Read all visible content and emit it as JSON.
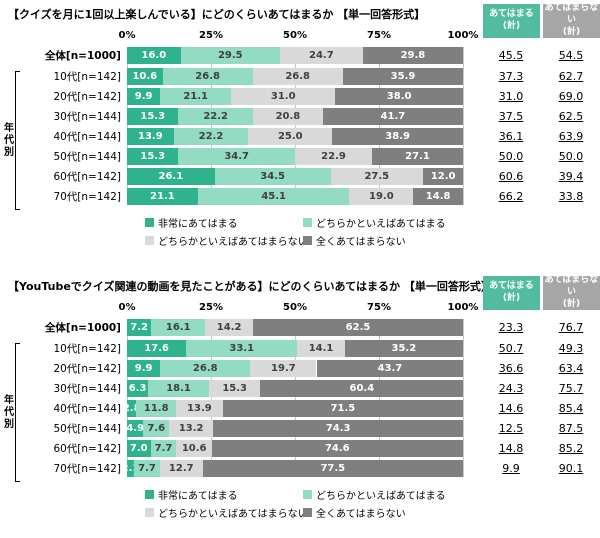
{
  "chart_data": [
    {
      "type": "bar",
      "stacked": true,
      "orientation": "horizontal",
      "title": "【クイズを月に1回以上楽しんでいる】にどのくらいあてはまるか 【単一回答形式】",
      "categories": [
        "全体[n=1000]",
        "10代[n=142]",
        "20代[n=142]",
        "30代[n=144]",
        "40代[n=144]",
        "50代[n=144]",
        "60代[n=142]",
        "70代[n=142]"
      ],
      "series": [
        {
          "name": "非常にあてはまる",
          "color": "#2FB28E",
          "label_color": "#ffffff",
          "values": [
            16.0,
            10.6,
            9.9,
            15.3,
            13.9,
            15.3,
            26.1,
            21.1
          ]
        },
        {
          "name": "どちらかといえばあてはまる",
          "color": "#93DCC3",
          "label_color": "#404040",
          "values": [
            29.5,
            26.8,
            21.1,
            22.2,
            22.2,
            34.7,
            34.5,
            45.1
          ]
        },
        {
          "name": "どちらかといえばあてはまらない",
          "color": "#D9D9D9",
          "label_color": "#404040",
          "values": [
            24.7,
            26.8,
            31.0,
            20.8,
            25.0,
            22.9,
            27.5,
            19.0
          ]
        },
        {
          "name": "全くあてはまらない",
          "color": "#7F7F7F",
          "label_color": "#ffffff",
          "values": [
            29.8,
            35.9,
            38.0,
            41.7,
            38.9,
            27.1,
            12.0,
            14.8
          ]
        }
      ],
      "x_ticks": [
        "0%",
        "25%",
        "50%",
        "75%",
        "100%"
      ],
      "xlim": [
        0,
        100
      ],
      "group_label": "年代別",
      "totals": {
        "agree_header": "あてはまる\n(計)",
        "disagree_header": "あてはまらない\n(計)",
        "agree": [
          45.5,
          37.3,
          31.0,
          37.5,
          36.1,
          50.0,
          60.6,
          66.2
        ],
        "disagree": [
          54.5,
          62.7,
          69.0,
          62.5,
          63.9,
          50.0,
          39.4,
          33.8
        ]
      }
    },
    {
      "type": "bar",
      "stacked": true,
      "orientation": "horizontal",
      "title": "【YouTubeでクイズ関連の動画を見たことがある】にどのくらいあてはまるか 【単一回答形式】",
      "categories": [
        "全体[n=1000]",
        "10代[n=142]",
        "20代[n=142]",
        "30代[n=144]",
        "40代[n=144]",
        "50代[n=144]",
        "60代[n=142]",
        "70代[n=142]"
      ],
      "series": [
        {
          "name": "非常にあてはまる",
          "color": "#2FB28E",
          "label_color": "#ffffff",
          "values": [
            7.2,
            17.6,
            9.9,
            6.3,
            2.8,
            4.9,
            7.0,
            2.1
          ]
        },
        {
          "name": "どちらかといえばあてはまる",
          "color": "#93DCC3",
          "label_color": "#404040",
          "values": [
            16.1,
            33.1,
            26.8,
            18.1,
            11.8,
            7.6,
            7.7,
            7.7
          ]
        },
        {
          "name": "どちらかといえばあてはまらない",
          "color": "#D9D9D9",
          "label_color": "#404040",
          "values": [
            14.2,
            14.1,
            19.7,
            15.3,
            13.9,
            13.2,
            10.6,
            12.7
          ]
        },
        {
          "name": "全くあてはまらない",
          "color": "#7F7F7F",
          "label_color": "#ffffff",
          "values": [
            62.5,
            35.2,
            43.7,
            60.4,
            71.5,
            74.3,
            74.6,
            77.5
          ]
        }
      ],
      "x_ticks": [
        "0%",
        "25%",
        "50%",
        "75%",
        "100%"
      ],
      "xlim": [
        0,
        100
      ],
      "group_label": "年代別",
      "totals": {
        "agree_header": "あてはまる\n(計)",
        "disagree_header": "あてはまらない\n(計)",
        "agree": [
          23.3,
          50.7,
          36.6,
          24.3,
          14.6,
          12.5,
          14.8,
          9.9
        ],
        "disagree": [
          76.7,
          49.3,
          63.4,
          75.7,
          85.4,
          87.5,
          85.2,
          90.1
        ]
      }
    }
  ]
}
